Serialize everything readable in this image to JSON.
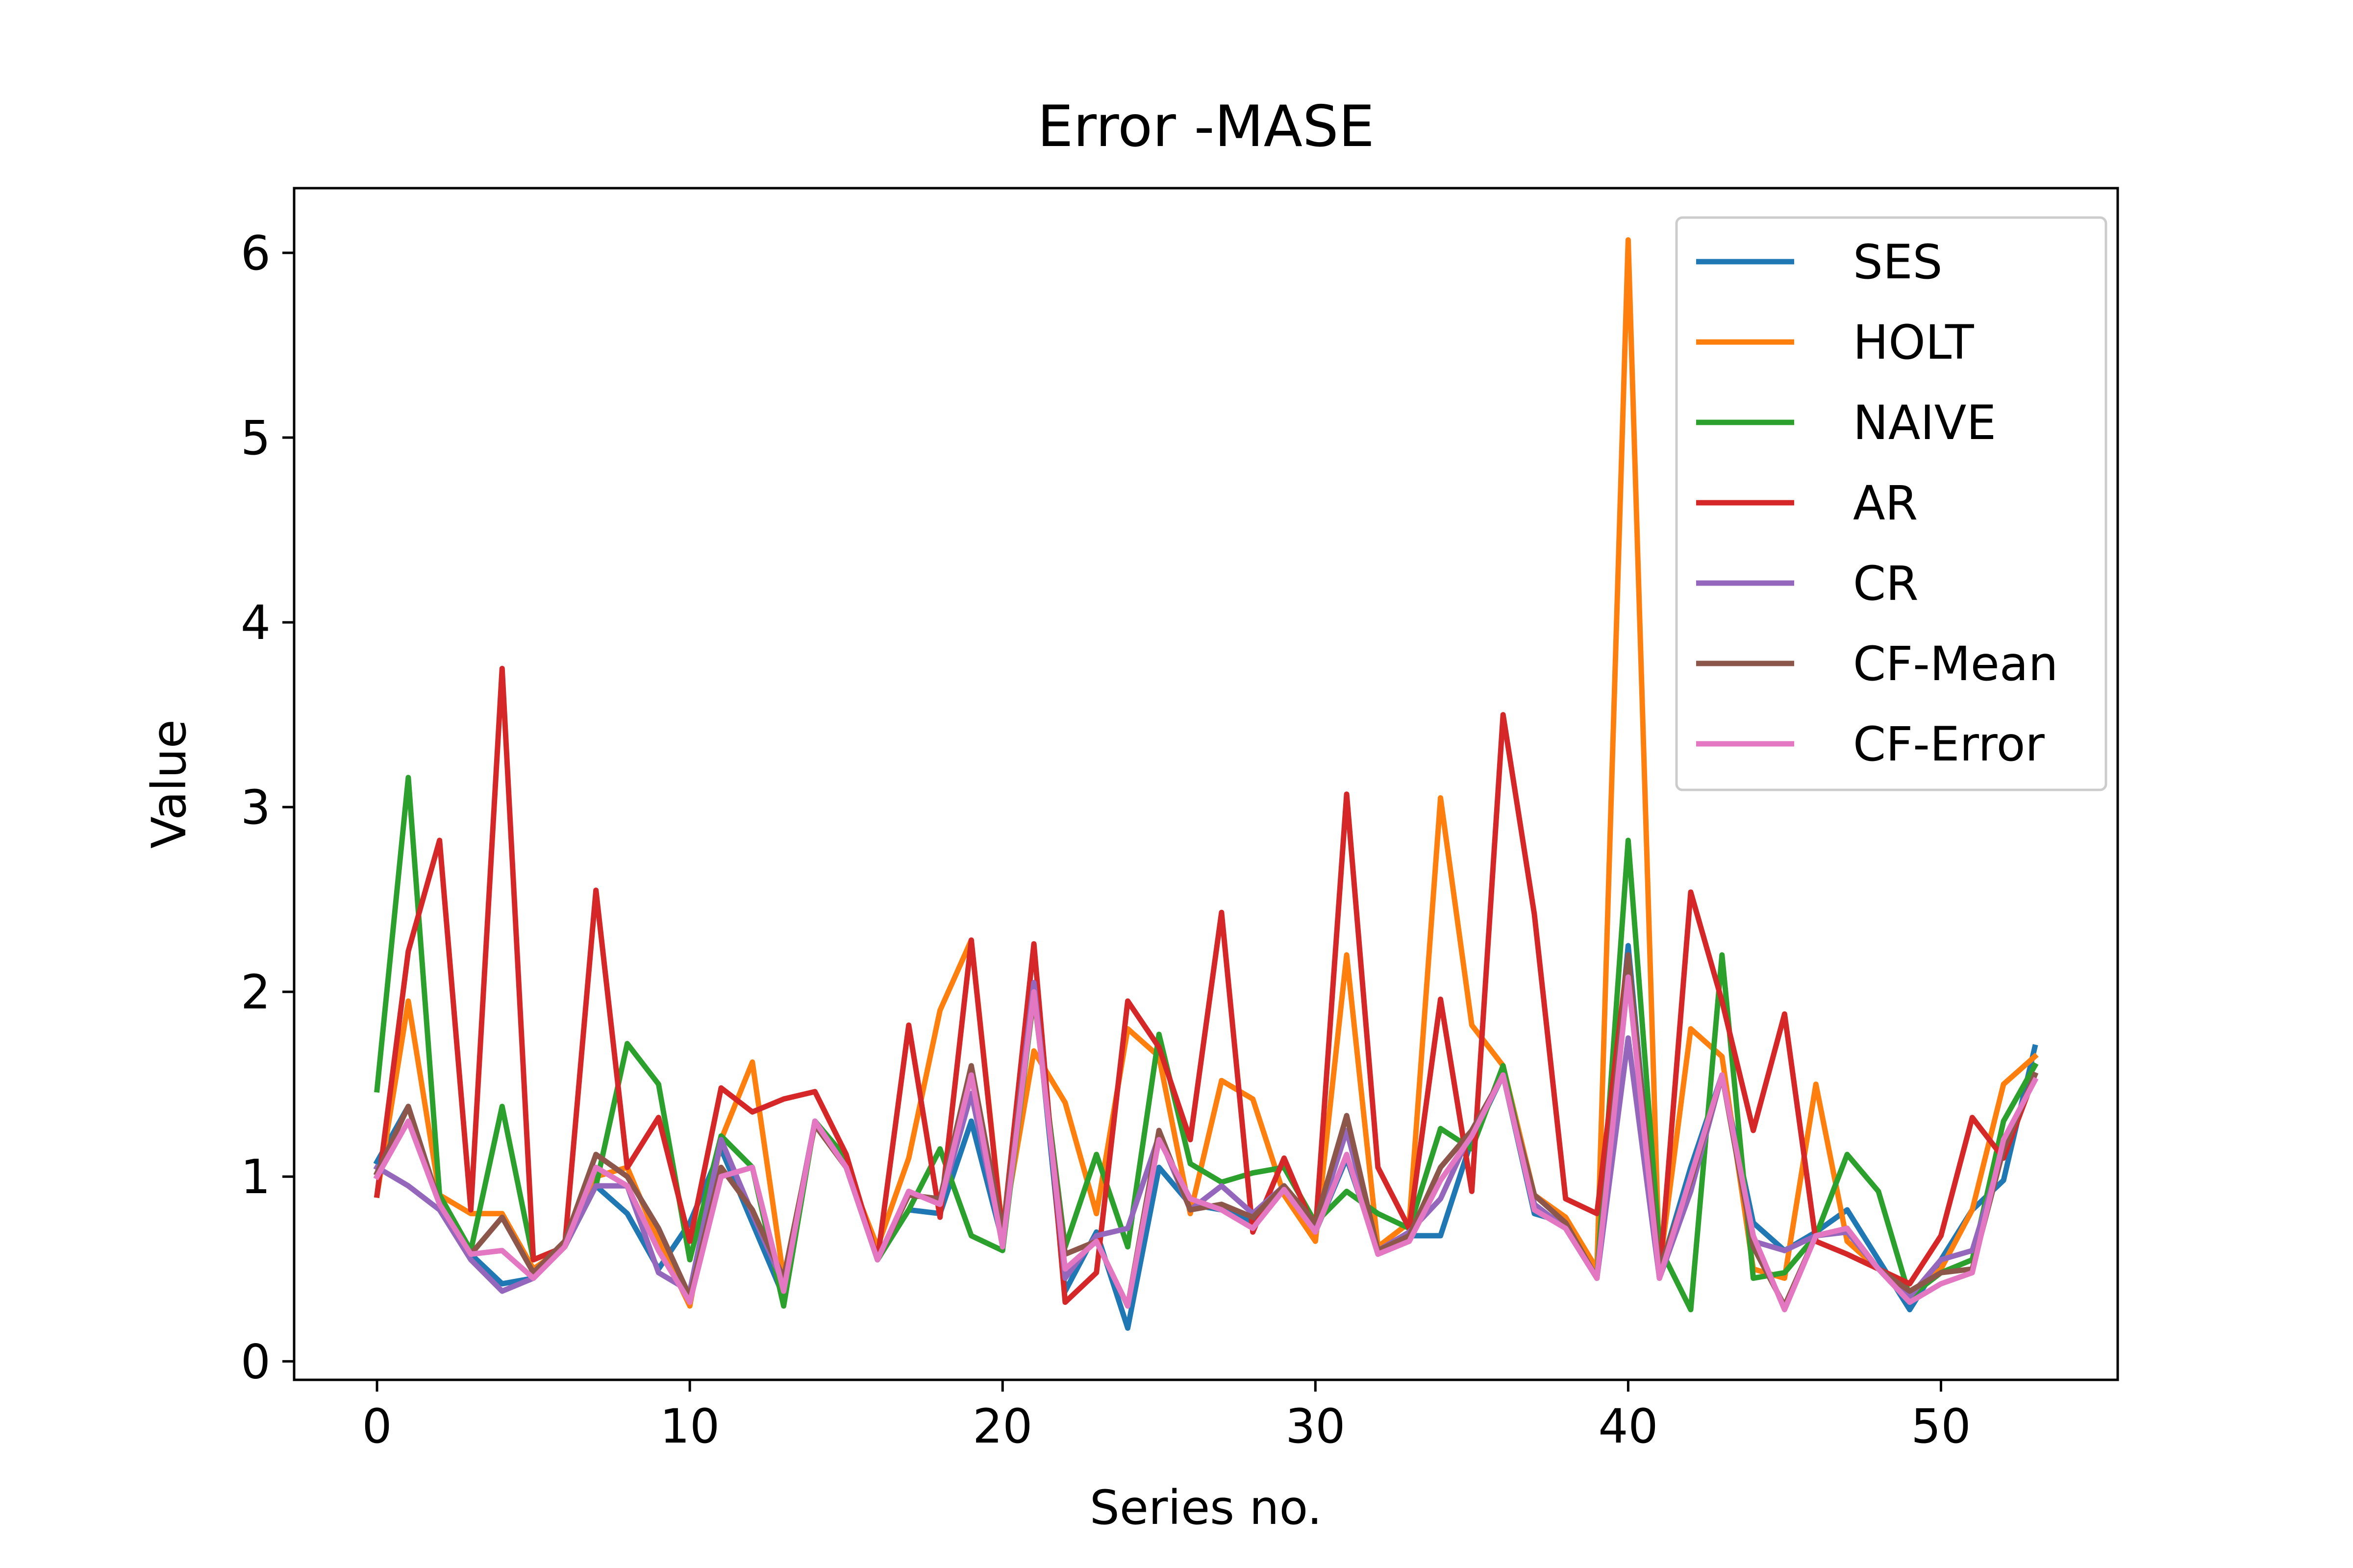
{
  "chart_data": {
    "type": "line",
    "title": "Error -MASE",
    "xlabel": "Series no.",
    "ylabel": "Value",
    "xlim": [
      -2.65,
      55.65
    ],
    "ylim": [
      -0.1,
      6.35
    ],
    "xticks": [
      0,
      10,
      20,
      30,
      40,
      50
    ],
    "yticks": [
      0,
      1,
      2,
      3,
      4,
      5,
      6
    ],
    "grid": false,
    "legend_position": "top-right",
    "x": [
      0,
      1,
      2,
      3,
      4,
      5,
      6,
      7,
      8,
      9,
      10,
      11,
      12,
      13,
      14,
      15,
      16,
      17,
      18,
      19,
      20,
      21,
      22,
      23,
      24,
      25,
      26,
      27,
      28,
      29,
      30,
      31,
      32,
      33,
      34,
      35,
      36,
      37,
      38,
      39,
      40,
      41,
      42,
      43,
      44,
      45,
      46,
      47,
      48,
      49,
      50,
      51,
      52,
      53
    ],
    "series": [
      {
        "name": "SES",
        "color": "#1f77b4",
        "values": [
          1.08,
          1.38,
          0.85,
          0.58,
          0.42,
          0.45,
          0.62,
          0.95,
          0.8,
          0.5,
          0.75,
          1.15,
          0.75,
          0.35,
          1.3,
          1.1,
          0.55,
          0.82,
          0.8,
          1.3,
          0.65,
          2.05,
          0.38,
          0.7,
          0.18,
          1.05,
          0.85,
          0.82,
          0.75,
          0.95,
          0.7,
          1.1,
          0.6,
          0.68,
          0.68,
          1.2,
          1.55,
          0.8,
          0.75,
          0.45,
          2.25,
          0.48,
          1.05,
          1.55,
          0.75,
          0.6,
          0.7,
          0.82,
          0.55,
          0.28,
          0.55,
          0.82,
          0.98,
          1.7
        ]
      },
      {
        "name": "HOLT",
        "color": "#ff7f0e",
        "values": [
          0.9,
          1.95,
          0.9,
          0.8,
          0.8,
          0.5,
          0.62,
          1.0,
          1.05,
          0.65,
          0.3,
          1.2,
          1.62,
          0.45,
          1.28,
          1.05,
          0.62,
          1.1,
          1.9,
          2.28,
          0.7,
          1.68,
          1.4,
          0.8,
          1.8,
          1.65,
          0.8,
          1.52,
          1.42,
          0.9,
          0.65,
          2.2,
          0.62,
          0.75,
          3.05,
          1.82,
          1.6,
          0.9,
          0.78,
          0.5,
          6.07,
          0.5,
          1.8,
          1.65,
          0.5,
          0.45,
          1.5,
          0.65,
          0.5,
          0.35,
          0.5,
          0.82,
          1.5,
          1.65
        ]
      },
      {
        "name": "NAIVE",
        "color": "#2ca02c",
        "values": [
          1.47,
          3.16,
          0.9,
          0.6,
          1.38,
          0.55,
          0.62,
          0.95,
          1.72,
          1.5,
          0.55,
          1.22,
          1.05,
          0.3,
          1.3,
          1.1,
          0.55,
          0.82,
          1.15,
          0.68,
          0.6,
          1.98,
          0.62,
          1.12,
          0.62,
          1.77,
          1.07,
          0.97,
          1.02,
          1.05,
          0.75,
          0.92,
          0.8,
          0.72,
          1.26,
          1.15,
          1.6,
          0.85,
          0.72,
          0.45,
          2.82,
          0.62,
          0.28,
          2.2,
          0.45,
          0.48,
          0.68,
          1.12,
          0.92,
          0.35,
          0.48,
          0.55,
          1.3,
          1.6
        ]
      },
      {
        "name": "AR",
        "color": "#d62728",
        "values": [
          0.9,
          2.22,
          2.82,
          0.82,
          3.75,
          0.55,
          0.62,
          2.55,
          1.05,
          1.32,
          0.65,
          1.48,
          1.35,
          1.42,
          1.46,
          1.12,
          0.55,
          1.82,
          0.78,
          2.28,
          0.68,
          2.26,
          0.32,
          0.48,
          1.95,
          1.7,
          1.2,
          2.43,
          0.7,
          1.1,
          0.7,
          3.07,
          1.05,
          0.72,
          1.96,
          0.92,
          3.5,
          2.42,
          0.88,
          0.8,
          2.2,
          0.45,
          2.54,
          1.95,
          1.25,
          1.88,
          0.65,
          0.58,
          0.5,
          0.42,
          0.68,
          1.32,
          1.1,
          1.55
        ]
      },
      {
        "name": "CR",
        "color": "#9467bd",
        "values": [
          1.05,
          0.95,
          0.82,
          0.55,
          0.38,
          0.45,
          0.62,
          0.95,
          0.95,
          0.48,
          0.38,
          1.2,
          0.8,
          0.42,
          1.3,
          1.05,
          0.55,
          0.92,
          0.85,
          1.45,
          0.65,
          2.05,
          0.45,
          0.68,
          0.72,
          1.22,
          0.82,
          0.95,
          0.8,
          0.95,
          0.72,
          1.25,
          0.6,
          0.7,
          0.88,
          1.25,
          1.55,
          0.85,
          0.72,
          0.45,
          1.75,
          0.45,
          0.92,
          1.55,
          0.65,
          0.6,
          0.68,
          0.7,
          0.5,
          0.35,
          0.55,
          0.6,
          1.15,
          1.55
        ]
      },
      {
        "name": "CF-Mean",
        "color": "#8c564b",
        "values": [
          1.02,
          1.38,
          0.85,
          0.58,
          0.78,
          0.48,
          0.65,
          1.12,
          1.0,
          0.72,
          0.35,
          1.05,
          0.82,
          0.45,
          1.28,
          1.05,
          0.55,
          0.9,
          0.88,
          1.6,
          0.7,
          1.98,
          0.58,
          0.65,
          0.3,
          1.25,
          0.82,
          0.85,
          0.78,
          0.95,
          0.75,
          1.33,
          0.6,
          0.68,
          1.05,
          1.25,
          1.55,
          0.9,
          0.75,
          0.45,
          2.2,
          0.5,
          0.98,
          1.55,
          0.62,
          0.3,
          0.68,
          0.72,
          0.5,
          0.38,
          0.48,
          0.5,
          1.15,
          1.55
        ]
      },
      {
        "name": "CF-Error",
        "color": "#e377c2",
        "values": [
          1.0,
          1.3,
          0.85,
          0.58,
          0.6,
          0.45,
          0.62,
          1.05,
          0.95,
          0.6,
          0.32,
          1.0,
          1.05,
          0.38,
          1.3,
          1.05,
          0.55,
          0.92,
          0.85,
          1.55,
          0.62,
          2.0,
          0.5,
          0.65,
          0.3,
          1.2,
          0.88,
          0.82,
          0.72,
          0.93,
          0.7,
          1.12,
          0.58,
          0.65,
          0.98,
          1.22,
          1.55,
          0.82,
          0.72,
          0.45,
          2.08,
          0.45,
          1.0,
          1.55,
          0.68,
          0.28,
          0.68,
          0.72,
          0.5,
          0.32,
          0.42,
          0.48,
          1.2,
          1.52
        ]
      }
    ]
  }
}
